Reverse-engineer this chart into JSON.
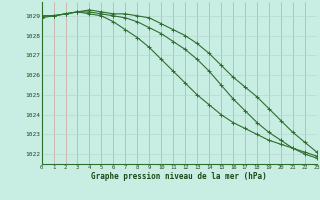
{
  "title": "Graphe pression niveau de la mer (hPa)",
  "background_color": "#c8eee4",
  "grid_color_v": "#d4a0a0",
  "grid_color_h": "#b8d8d0",
  "line_color": "#2d6e2d",
  "text_color": "#1a4a1a",
  "ylim": [
    1021.5,
    1029.7
  ],
  "xlim": [
    0,
    23
  ],
  "yticks": [
    1022,
    1023,
    1024,
    1025,
    1026,
    1027,
    1028,
    1029
  ],
  "xticks": [
    0,
    1,
    2,
    3,
    4,
    5,
    6,
    7,
    8,
    9,
    10,
    11,
    12,
    13,
    14,
    15,
    16,
    17,
    18,
    19,
    20,
    21,
    22,
    23
  ],
  "series1": [
    1029.0,
    1029.0,
    1029.1,
    1029.2,
    1029.3,
    1029.2,
    1029.1,
    1029.1,
    1029.0,
    1028.9,
    1028.6,
    1028.3,
    1028.0,
    1027.6,
    1027.1,
    1026.5,
    1025.9,
    1025.4,
    1024.9,
    1024.3,
    1023.7,
    1023.1,
    1022.6,
    1022.1
  ],
  "series2": [
    1028.9,
    1029.0,
    1029.1,
    1029.2,
    1029.1,
    1029.0,
    1028.7,
    1028.3,
    1027.9,
    1027.4,
    1026.8,
    1026.2,
    1025.6,
    1025.0,
    1024.5,
    1024.0,
    1023.6,
    1023.3,
    1023.0,
    1022.7,
    1022.5,
    1022.3,
    1022.1,
    1021.9
  ],
  "series3": [
    1029.0,
    1029.0,
    1029.1,
    1029.2,
    1029.2,
    1029.1,
    1029.0,
    1028.9,
    1028.7,
    1028.4,
    1028.1,
    1027.7,
    1027.3,
    1026.8,
    1026.2,
    1025.5,
    1024.8,
    1024.2,
    1023.6,
    1023.1,
    1022.7,
    1022.3,
    1022.0,
    1021.8
  ]
}
